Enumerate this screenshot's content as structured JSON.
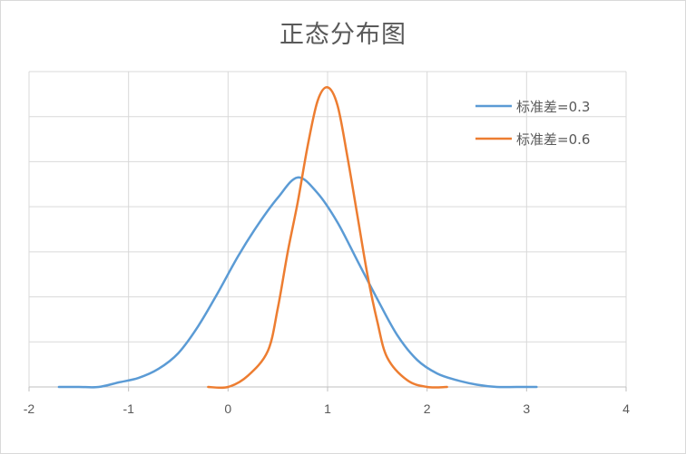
{
  "chart_data": {
    "type": "line",
    "title": "正态分布图",
    "xlabel": "",
    "ylabel": "",
    "xlim": [
      -2,
      4
    ],
    "ylim": [
      0,
      1.4
    ],
    "x_ticks": [
      "-2",
      "-1",
      "0",
      "1",
      "2",
      "3",
      "4"
    ],
    "grid": true,
    "legend_position": "top-right",
    "series": [
      {
        "name": "标准差=0.3",
        "color": "#5b9bd5",
        "x": [
          -1.7,
          -1.5,
          -1.3,
          -1.1,
          -0.9,
          -0.7,
          -0.5,
          -0.3,
          -0.1,
          0.1,
          0.3,
          0.5,
          0.7,
          0.9,
          1.1,
          1.3,
          1.5,
          1.7,
          1.9,
          2.1,
          2.3,
          2.5,
          2.7,
          2.9,
          3.1
        ],
        "y": [
          0.0,
          0.0,
          0.0,
          0.02,
          0.04,
          0.08,
          0.15,
          0.27,
          0.42,
          0.58,
          0.72,
          0.84,
          0.93,
          0.86,
          0.73,
          0.56,
          0.39,
          0.23,
          0.12,
          0.06,
          0.03,
          0.01,
          0.0,
          0.0,
          0.0
        ]
      },
      {
        "name": "标准差=0.6",
        "color": "#ed7d31",
        "x": [
          -0.2,
          0.0,
          0.2,
          0.4,
          0.5,
          0.6,
          0.7,
          0.8,
          0.9,
          1.0,
          1.1,
          1.2,
          1.3,
          1.4,
          1.5,
          1.6,
          1.8,
          2.0,
          2.2
        ],
        "y": [
          0.0,
          0.0,
          0.05,
          0.16,
          0.35,
          0.6,
          0.82,
          1.07,
          1.27,
          1.33,
          1.25,
          1.02,
          0.76,
          0.5,
          0.29,
          0.13,
          0.03,
          0.0,
          0.0
        ]
      }
    ]
  }
}
